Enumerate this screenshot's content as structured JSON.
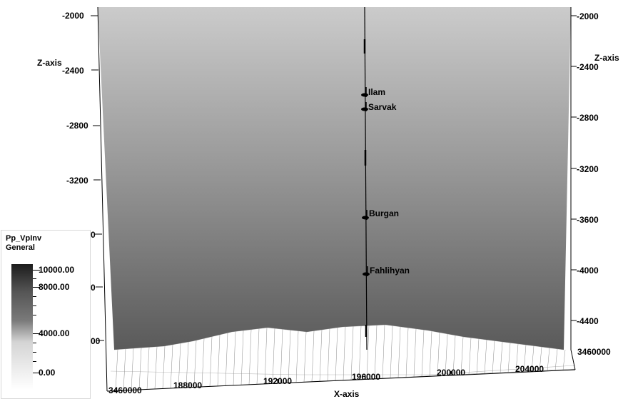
{
  "viewer": {
    "z_axis_label_left": "Z-axis",
    "z_axis_label_right": "Z-axis",
    "x_axis_label": "X-axis",
    "left_z_ticks": [
      "-2000",
      "-2400",
      "-2800",
      "-3200"
    ],
    "left_z_partial_ticks": [
      "0",
      "0",
      "00"
    ],
    "right_z_ticks": [
      "-2000",
      "-2400",
      "-2800",
      "-3200",
      "-3600",
      "-4000",
      "-4400"
    ],
    "x_ticks": [
      "3460000",
      "188000",
      "192000",
      "196000",
      "200000",
      "204000"
    ],
    "right_y_tick": "3460000"
  },
  "well": {
    "markers": [
      {
        "name": "Ilam"
      },
      {
        "name": "Sarvak"
      },
      {
        "name": "Burgan"
      },
      {
        "name": "Fahlihyan"
      }
    ]
  },
  "legend": {
    "title": "Pp_VpInv",
    "subtitle": "General",
    "labels": [
      "10000.00",
      "8000.00",
      "4000.00",
      "0.00"
    ]
  },
  "colors": {
    "surface_top": "#c8c8c8",
    "surface_bottom": "#606060",
    "well_line": "#000000"
  }
}
